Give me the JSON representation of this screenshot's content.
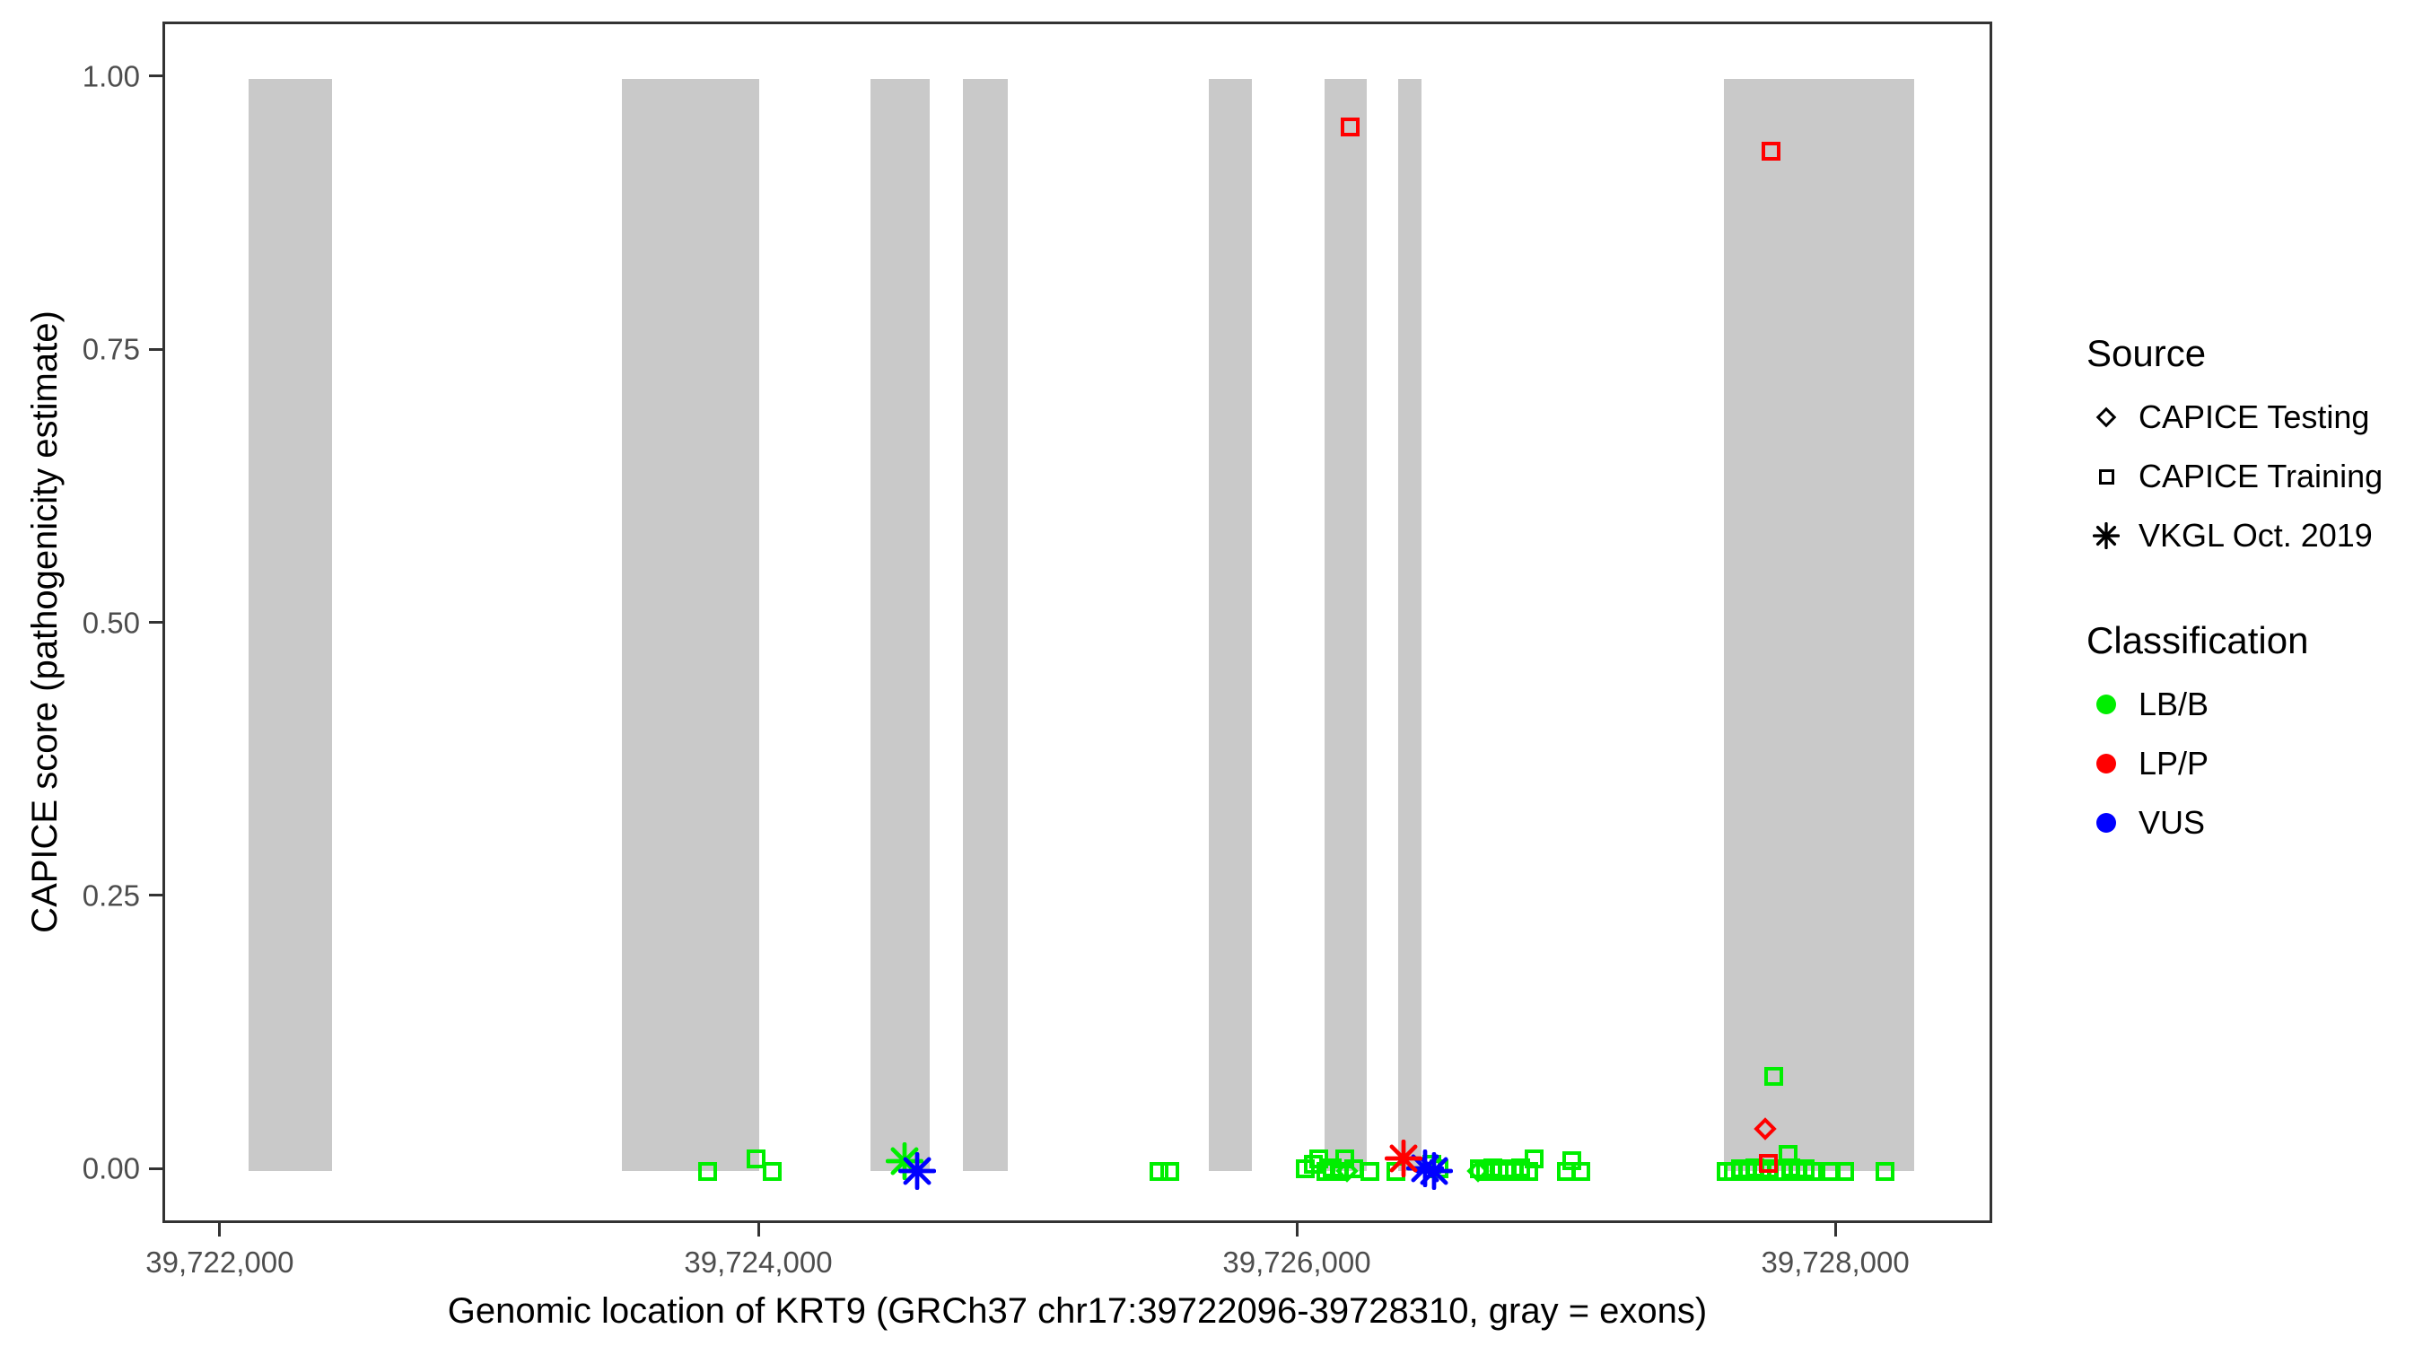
{
  "figure": {
    "legend": {
      "source_title": "Source",
      "classification_title": "Classification",
      "source_items": [
        {
          "label": "CAPICE Testing",
          "shape": "diamond"
        },
        {
          "label": "CAPICE Training",
          "shape": "square"
        },
        {
          "label": "VKGL Oct. 2019",
          "shape": "asterisk"
        }
      ],
      "classification_items": [
        {
          "label": "LB/B",
          "color": "#00EE00"
        },
        {
          "label": "LP/P",
          "color": "#FF0000"
        },
        {
          "label": "VUS",
          "color": "#0000FF"
        }
      ]
    }
  },
  "chart_data": {
    "type": "scatter",
    "xlabel": "Genomic location of KRT9 (GRCh37 chr17:39722096-39728310, gray = exons)",
    "ylabel": "CAPICE score (pathogenicity estimate)",
    "x_domain": [
      39721787,
      39728583
    ],
    "y_domain": [
      -0.05,
      1.05
    ],
    "x_ticks": [
      {
        "value": 39722000,
        "label": "39,722,000"
      },
      {
        "value": 39724000,
        "label": "39,724,000"
      },
      {
        "value": 39726000,
        "label": "39,726,000"
      },
      {
        "value": 39728000,
        "label": "39,728,000"
      }
    ],
    "y_ticks": [
      {
        "value": 0.0,
        "label": "0.00"
      },
      {
        "value": 0.25,
        "label": "0.25"
      },
      {
        "value": 0.5,
        "label": "0.50"
      },
      {
        "value": 0.75,
        "label": "0.75"
      },
      {
        "value": 1.0,
        "label": "1.00"
      }
    ],
    "exon_color": "#c9c9c9",
    "exons": [
      {
        "start": 39722097,
        "end": 39722407
      },
      {
        "start": 39723483,
        "end": 39723993
      },
      {
        "start": 39724407,
        "end": 39724627
      },
      {
        "start": 39724750,
        "end": 39724917
      },
      {
        "start": 39725663,
        "end": 39725823
      },
      {
        "start": 39726093,
        "end": 39726250
      },
      {
        "start": 39726367,
        "end": 39726453
      },
      {
        "start": 39727577,
        "end": 39728283
      }
    ],
    "series": [
      {
        "source": "CAPICE Training",
        "classification": "LB/B",
        "shape": "square",
        "color": "#00EE00",
        "points": [
          [
            39723803,
            0.0
          ],
          [
            39723980,
            0.011
          ],
          [
            39724043,
            0.0
          ],
          [
            39725477,
            0.0
          ],
          [
            39725517,
            0.0
          ],
          [
            39726023,
            0.002
          ],
          [
            39726050,
            0.006
          ],
          [
            39726073,
            0.011
          ],
          [
            39726097,
            0.0
          ],
          [
            39726123,
            0.003
          ],
          [
            39726147,
            0.0
          ],
          [
            39726167,
            0.011
          ],
          [
            39726200,
            0.002
          ],
          [
            39726260,
            0.0
          ],
          [
            39726357,
            0.0
          ],
          [
            39726490,
            0.006
          ],
          [
            39726517,
            0.002
          ],
          [
            39726667,
            0.002
          ],
          [
            39726690,
            0.0
          ],
          [
            39726717,
            0.003
          ],
          [
            39726743,
            0.0
          ],
          [
            39726770,
            0.002
          ],
          [
            39726797,
            0.0
          ],
          [
            39726823,
            0.003
          ],
          [
            39726850,
            0.0
          ],
          [
            39726873,
            0.011
          ],
          [
            39726990,
            0.0
          ],
          [
            39727010,
            0.01
          ],
          [
            39727043,
            0.0
          ],
          [
            39727583,
            0.0
          ],
          [
            39727610,
            0.0
          ],
          [
            39727637,
            0.002
          ],
          [
            39727663,
            0.0
          ],
          [
            39727690,
            0.003
          ],
          [
            39727717,
            0.0
          ],
          [
            39727743,
            0.002
          ],
          [
            39727770,
            0.0
          ],
          [
            39727797,
            0.0
          ],
          [
            39727823,
            0.003
          ],
          [
            39727850,
            0.0
          ],
          [
            39727877,
            0.002
          ],
          [
            39727903,
            0.0
          ],
          [
            39727813,
            0.015
          ],
          [
            39727760,
            0.087
          ],
          [
            39727973,
            0.0
          ],
          [
            39728023,
            0.0
          ],
          [
            39728173,
            0.0
          ]
        ]
      },
      {
        "source": "CAPICE Training",
        "classification": "LP/P",
        "shape": "square",
        "color": "#FF0000",
        "points": [
          [
            39726187,
            0.956
          ],
          [
            39727750,
            0.934
          ],
          [
            39727740,
            0.007
          ]
        ]
      },
      {
        "source": "CAPICE Testing",
        "classification": "LB/B",
        "shape": "diamond",
        "color": "#00EE00",
        "points": [
          [
            39726177,
            0.0
          ],
          [
            39726663,
            0.0
          ]
        ]
      },
      {
        "source": "CAPICE Testing",
        "classification": "LP/P",
        "shape": "diamond",
        "color": "#FF0000",
        "points": [
          [
            39727730,
            0.039
          ]
        ]
      },
      {
        "source": "VKGL Oct. 2019",
        "classification": "LB/B",
        "shape": "asterisk",
        "color": "#00EE00",
        "points": [
          [
            39724533,
            0.009
          ]
        ]
      },
      {
        "source": "VKGL Oct. 2019",
        "classification": "VUS",
        "shape": "asterisk",
        "color": "#0000FF",
        "points": [
          [
            39724580,
            0.0
          ],
          [
            39726467,
            0.003
          ],
          [
            39726500,
            0.0
          ]
        ]
      },
      {
        "source": "VKGL Oct. 2019",
        "classification": "LP/P",
        "shape": "asterisk",
        "color": "#FF0000",
        "points": [
          [
            39726387,
            0.012
          ]
        ]
      }
    ]
  }
}
